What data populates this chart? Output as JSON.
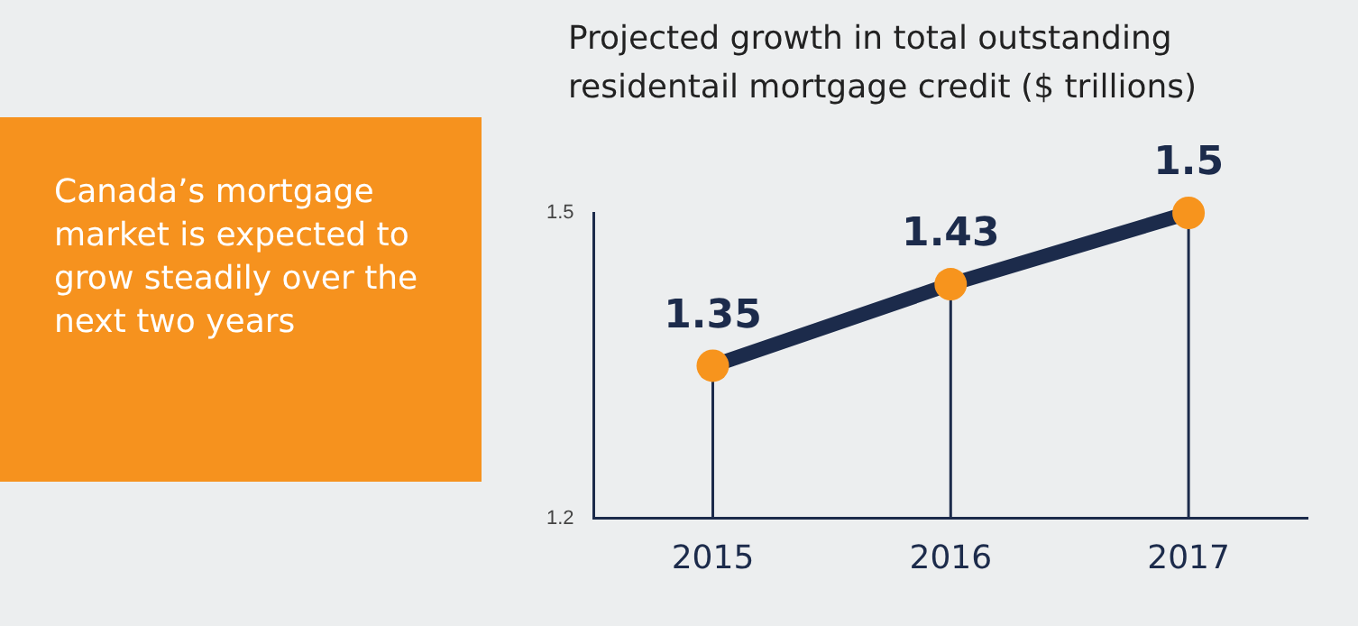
{
  "chart_data": [
    {
      "type": "other",
      "annotations": [
        "Canada’s mortgage market is expected to grow steadily over the next two years"
      ]
    },
    {
      "type": "line",
      "title": "Projected growth in total outstanding residentail mortgage credit ($ trillions)",
      "categories": [
        "2015",
        "2016",
        "2017"
      ],
      "series": [
        {
          "color": "#1c2b4b",
          "values": [
            1.35,
            1.43,
            1.5
          ]
        }
      ],
      "ylim": [
        1.2,
        1.5
      ],
      "yticks": [
        1.2,
        1.5
      ],
      "data_labels": true,
      "marker": "circle",
      "grid": "x",
      "legend": false
    }
  ]
}
